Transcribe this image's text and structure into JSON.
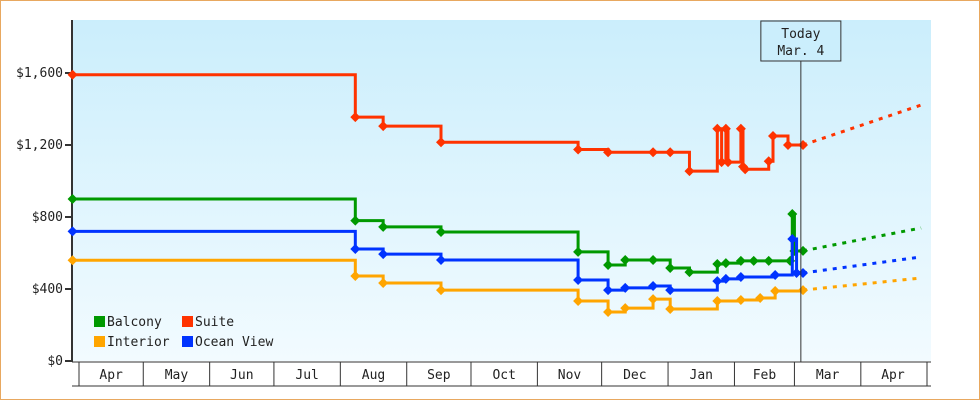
{
  "chart_data": {
    "type": "line",
    "title": "",
    "xlabel": "",
    "ylabel": "",
    "ylim": [
      0,
      1890
    ],
    "x_unit": "days since Apr 1",
    "y_ticks": [
      {
        "value": 0,
        "label": "$0"
      },
      {
        "value": 400,
        "label": "$400"
      },
      {
        "value": 800,
        "label": "$800"
      },
      {
        "value": 1200,
        "label": "$1,200"
      },
      {
        "value": 1600,
        "label": "$1,600"
      }
    ],
    "months": [
      {
        "label": "Apr",
        "start": 0
      },
      {
        "label": "May",
        "start": 30
      },
      {
        "label": "Jun",
        "start": 61
      },
      {
        "label": "Jul",
        "start": 91
      },
      {
        "label": "Aug",
        "start": 122
      },
      {
        "label": "Sep",
        "start": 153
      },
      {
        "label": "Oct",
        "start": 183
      },
      {
        "label": "Nov",
        "start": 214
      },
      {
        "label": "Dec",
        "start": 244
      },
      {
        "label": "Jan",
        "start": 275
      },
      {
        "label": "Feb",
        "start": 306
      },
      {
        "label": "Mar",
        "start": 334
      },
      {
        "label": "Apr",
        "start": 365
      }
    ],
    "x_end": 395,
    "today": {
      "day": 337,
      "line1": "Today",
      "line2": "Mar. 4"
    },
    "legend_position": "bottom-left",
    "series": [
      {
        "name": "Balcony",
        "color": "#009900",
        "points": [
          [
            -3,
            900
          ],
          [
            129,
            780
          ],
          [
            142,
            745
          ],
          [
            169,
            717
          ],
          [
            233,
            606
          ],
          [
            247,
            533
          ],
          [
            255,
            561
          ],
          [
            268,
            561
          ],
          [
            276,
            517
          ],
          [
            285,
            494
          ],
          [
            298,
            539
          ],
          [
            302,
            544
          ],
          [
            309,
            556
          ],
          [
            315,
            556
          ],
          [
            322,
            556
          ],
          [
            332,
            556
          ],
          [
            333,
            817
          ],
          [
            334,
            611
          ],
          [
            338,
            612
          ]
        ],
        "projection": [
          [
            338,
            612
          ],
          [
            395,
            739
          ]
        ]
      },
      {
        "name": "Suite",
        "color": "#ff3300",
        "points": [
          [
            -3,
            1590
          ],
          [
            129,
            1355
          ],
          [
            142,
            1305
          ],
          [
            169,
            1215
          ],
          [
            233,
            1175
          ],
          [
            247,
            1160
          ],
          [
            268,
            1160
          ],
          [
            276,
            1160
          ],
          [
            285,
            1055
          ],
          [
            298,
            1290
          ],
          [
            300,
            1105
          ],
          [
            302,
            1290
          ],
          [
            303,
            1105
          ],
          [
            309,
            1290
          ],
          [
            310,
            1080
          ],
          [
            311,
            1065
          ],
          [
            322,
            1110
          ],
          [
            324,
            1250
          ],
          [
            331,
            1200
          ],
          [
            338,
            1200
          ]
        ],
        "projection": [
          [
            338,
            1200
          ],
          [
            395,
            1422
          ]
        ]
      },
      {
        "name": "Interior",
        "color": "#ffa500",
        "points": [
          [
            -3,
            560
          ],
          [
            129,
            472
          ],
          [
            142,
            433
          ],
          [
            169,
            394
          ],
          [
            233,
            333
          ],
          [
            247,
            272
          ],
          [
            255,
            294
          ],
          [
            268,
            344
          ],
          [
            276,
            289
          ],
          [
            298,
            333
          ],
          [
            309,
            339
          ],
          [
            318,
            350
          ],
          [
            325,
            389
          ],
          [
            338,
            394
          ]
        ],
        "projection": [
          [
            338,
            394
          ],
          [
            395,
            461
          ]
        ]
      },
      {
        "name": "Ocean View",
        "color": "#0033ff",
        "points": [
          [
            -3,
            720
          ],
          [
            129,
            622
          ],
          [
            142,
            594
          ],
          [
            169,
            561
          ],
          [
            233,
            450
          ],
          [
            247,
            394
          ],
          [
            255,
            406
          ],
          [
            268,
            417
          ],
          [
            276,
            394
          ],
          [
            298,
            444
          ],
          [
            302,
            456
          ],
          [
            309,
            467
          ],
          [
            325,
            478
          ],
          [
            333,
            678
          ],
          [
            335,
            489
          ],
          [
            338,
            489
          ]
        ],
        "projection": [
          [
            338,
            489
          ],
          [
            395,
            578
          ]
        ]
      }
    ]
  }
}
